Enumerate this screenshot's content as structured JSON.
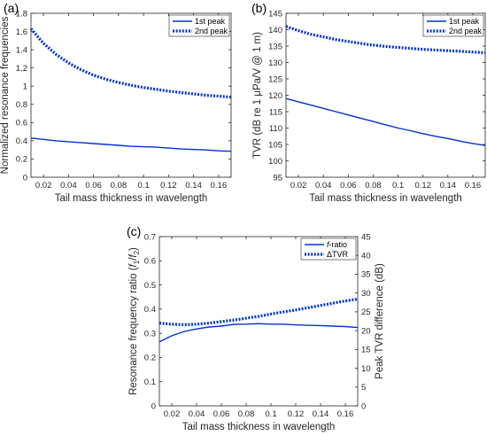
{
  "colors": {
    "series": "#0033cc",
    "axis": "#262626"
  },
  "chart_data": [
    {
      "panel_label": "(a)",
      "type": "line",
      "xlabel": "Tail mass thickness in wavelength",
      "ylabel": "Normalized resonance frequencies",
      "xlim": [
        0.01,
        0.17
      ],
      "ylim": [
        0,
        1.8
      ],
      "xticks": [
        "0.02",
        "0.04",
        "0.06",
        "0.08",
        "0.1",
        "0.12",
        "0.14",
        "0.16"
      ],
      "yticks": [
        "0",
        "0.2",
        "0.4",
        "0.6",
        "0.8",
        "1",
        "1.2",
        "1.4",
        "1.6",
        "1.8"
      ],
      "legend_position": "top-right",
      "x": [
        0.01,
        0.02,
        0.03,
        0.04,
        0.05,
        0.06,
        0.07,
        0.08,
        0.09,
        0.1,
        0.11,
        0.12,
        0.13,
        0.14,
        0.15,
        0.16,
        0.17
      ],
      "series": [
        {
          "name": "1st peak",
          "style": "solid",
          "values": [
            0.43,
            0.415,
            0.4,
            0.39,
            0.38,
            0.37,
            0.36,
            0.35,
            0.34,
            0.335,
            0.33,
            0.32,
            0.31,
            0.305,
            0.3,
            0.29,
            0.285
          ]
        },
        {
          "name": "2nd peak",
          "style": "dotted",
          "values": [
            1.63,
            1.47,
            1.35,
            1.255,
            1.18,
            1.12,
            1.075,
            1.04,
            1.01,
            0.985,
            0.965,
            0.945,
            0.93,
            0.915,
            0.9,
            0.89,
            0.88
          ]
        }
      ]
    },
    {
      "panel_label": "(b)",
      "type": "line",
      "xlabel": "Tail mass thickness in wavelength",
      "ylabel": "TVR (dB re 1 μPa/V @ 1 m)",
      "xlim": [
        0.01,
        0.17
      ],
      "ylim": [
        95,
        145
      ],
      "xticks": [
        "0.02",
        "0.04",
        "0.06",
        "0.08",
        "0.1",
        "0.12",
        "0.14",
        "0.16"
      ],
      "yticks": [
        "95",
        "100",
        "105",
        "110",
        "115",
        "120",
        "125",
        "130",
        "135",
        "140",
        "145"
      ],
      "legend_position": "top-right",
      "x": [
        0.01,
        0.02,
        0.03,
        0.04,
        0.05,
        0.06,
        0.07,
        0.08,
        0.09,
        0.1,
        0.11,
        0.12,
        0.13,
        0.14,
        0.15,
        0.16,
        0.17
      ],
      "series": [
        {
          "name": "1st peak",
          "style": "solid",
          "values": [
            119,
            118.0,
            117.0,
            116.0,
            115.0,
            114.0,
            113.0,
            112.0,
            111.0,
            110.0,
            109.2,
            108.3,
            107.5,
            106.8,
            106.0,
            105.3,
            104.7
          ]
        },
        {
          "name": "2nd peak",
          "style": "dotted",
          "values": [
            141.0,
            139.7,
            138.6,
            137.8,
            137.0,
            136.4,
            135.8,
            135.3,
            134.9,
            134.6,
            134.3,
            134.0,
            133.8,
            133.6,
            133.4,
            133.2,
            133.0
          ]
        }
      ]
    },
    {
      "panel_label": "(c)",
      "type": "line",
      "xlabel": "Tail mass thickness in wavelength",
      "ylabel": "Resonance frequency ratio (f1/f2)",
      "ylabel_parts": {
        "main": "Resonance frequency ratio (",
        "f1": "f",
        "sub1": "1",
        "slash": "/",
        "f2": "f",
        "sub2": "2",
        "close": ")"
      },
      "y2label": "Peak TVR difference (dB)",
      "xlim": [
        0.01,
        0.17
      ],
      "ylim": [
        0,
        0.7
      ],
      "y2lim": [
        0,
        45
      ],
      "xticks": [
        "0.02",
        "0.04",
        "0.06",
        "0.08",
        "0.1",
        "0.12",
        "0.14",
        "0.16"
      ],
      "yticks": [
        "0",
        "0.1",
        "0.2",
        "0.3",
        "0.4",
        "0.5",
        "0.6",
        "0.7"
      ],
      "y2ticks": [
        "0",
        "5",
        "10",
        "15",
        "20",
        "25",
        "30",
        "35",
        "40",
        "45"
      ],
      "legend_position": "top-right",
      "x": [
        0.01,
        0.02,
        0.03,
        0.04,
        0.05,
        0.06,
        0.07,
        0.08,
        0.09,
        0.1,
        0.11,
        0.12,
        0.13,
        0.14,
        0.15,
        0.16,
        0.17
      ],
      "series": [
        {
          "name": "f-ratio",
          "name_italic": "f",
          "name_rest": "-ratio",
          "axis": "left",
          "style": "solid",
          "values": [
            0.265,
            0.29,
            0.308,
            0.318,
            0.326,
            0.33,
            0.337,
            0.338,
            0.34,
            0.338,
            0.338,
            0.335,
            0.333,
            0.332,
            0.33,
            0.328,
            0.324
          ]
        },
        {
          "name": "ΔTVR",
          "axis": "right",
          "style": "dotted",
          "values": [
            22.0,
            21.7,
            21.6,
            21.7,
            22.0,
            22.4,
            22.8,
            23.3,
            23.8,
            24.4,
            25.0,
            25.5,
            26.1,
            26.7,
            27.3,
            27.9,
            28.4
          ]
        }
      ]
    }
  ]
}
